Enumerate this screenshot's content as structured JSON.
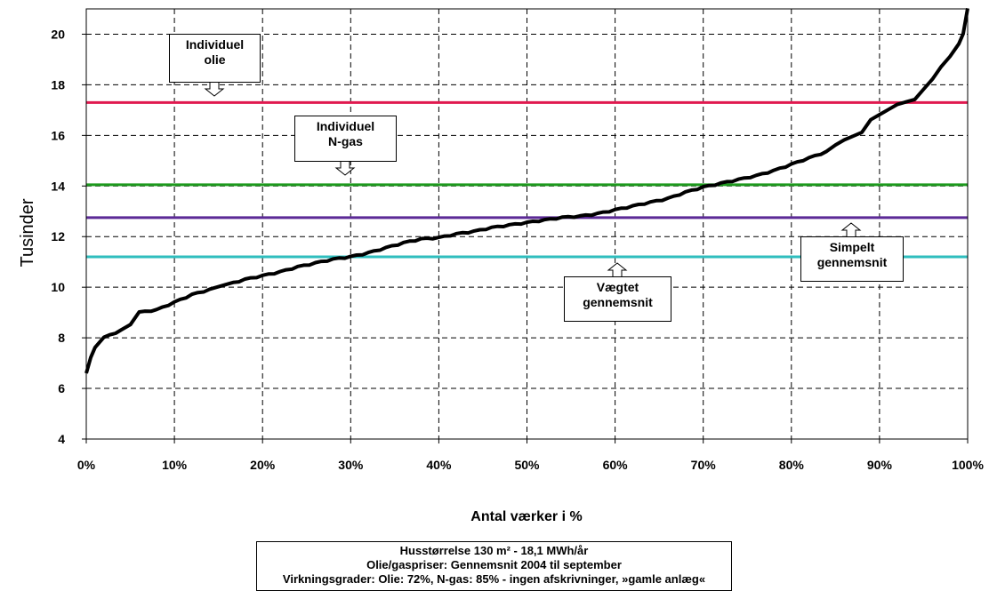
{
  "chart_data": {
    "type": "line",
    "ylabel": "Tusinder",
    "xlabel": "Antal værker i %",
    "ylim": [
      4,
      21
    ],
    "xlim": [
      0,
      100
    ],
    "y_ticks": [
      "4",
      "6",
      "8",
      "10",
      "12",
      "14",
      "16",
      "18",
      "20"
    ],
    "x_ticks": [
      "0%",
      "10%",
      "20%",
      "30%",
      "40%",
      "50%",
      "60%",
      "70%",
      "80%",
      "90%",
      "100%"
    ],
    "grid": true,
    "curve": {
      "color": "#000000",
      "x": [
        0,
        0.5,
        1,
        2,
        4,
        5,
        6,
        8,
        10,
        12,
        14,
        15,
        16,
        18,
        20,
        22,
        24,
        26,
        28,
        30,
        32,
        34,
        36,
        38,
        40,
        42,
        44,
        46,
        48,
        50,
        52,
        54,
        56,
        58,
        60,
        62,
        64,
        66,
        68,
        70,
        72,
        74,
        76,
        78,
        80,
        82,
        84,
        85,
        86,
        87,
        88,
        89,
        90,
        91,
        92,
        93,
        94,
        95,
        96,
        97,
        98,
        99,
        99.5,
        100
      ],
      "y": [
        6.6,
        7.2,
        7.6,
        8.0,
        8.3,
        8.5,
        9.0,
        9.1,
        9.4,
        9.7,
        9.9,
        10.0,
        10.1,
        10.3,
        10.45,
        10.6,
        10.8,
        10.95,
        11.1,
        11.2,
        11.35,
        11.55,
        11.75,
        11.9,
        11.95,
        12.1,
        12.2,
        12.35,
        12.45,
        12.55,
        12.65,
        12.75,
        12.8,
        12.9,
        13.05,
        13.2,
        13.35,
        13.5,
        13.75,
        13.95,
        14.1,
        14.25,
        14.4,
        14.6,
        14.85,
        15.1,
        15.35,
        15.6,
        15.8,
        15.95,
        16.1,
        16.6,
        16.8,
        17.0,
        17.2,
        17.3,
        17.4,
        17.8,
        18.2,
        18.7,
        19.1,
        19.6,
        20.0,
        21.0
      ]
    },
    "hlines": [
      {
        "label": "Individuel olie",
        "y": 17.3,
        "color": "#e0194f"
      },
      {
        "label": "Individuel N-gas",
        "y": 14.05,
        "color": "#1d9a1d"
      },
      {
        "label": "Simpelt gennemsnit",
        "y": 12.75,
        "color": "#5c2a96"
      },
      {
        "label": "Vægtet gennemsnit",
        "y": 11.2,
        "color": "#2fbebe"
      }
    ]
  },
  "callouts": {
    "olie": [
      "Individuel",
      "olie"
    ],
    "ngas": [
      "Individuel",
      "N-gas"
    ],
    "simpelt": [
      "Simpelt",
      "gennemsnit"
    ],
    "vaegtet": [
      "Vægtet",
      "gennemsnit"
    ]
  },
  "note": [
    "Husstørrelse 130 m² - 18,1 MWh/år",
    "Olie/gaspriser: Gennemsnit 2004 til september",
    "Virkningsgrader: Olie: 72%, N-gas: 85% - ingen afskrivninger, »gamle anlæg«"
  ]
}
